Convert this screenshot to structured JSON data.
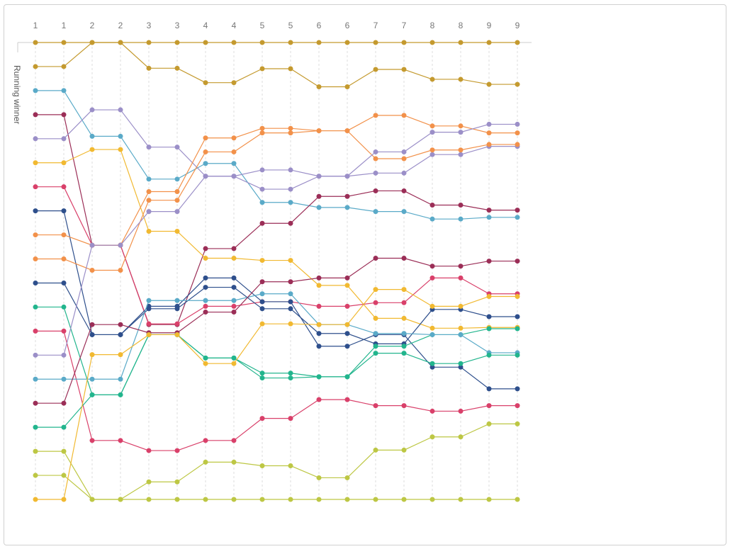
{
  "chart_data": {
    "type": "line",
    "title": "",
    "xlabel": "",
    "ylabel": "Running winner",
    "x": [
      "1",
      "1",
      "2",
      "2",
      "3",
      "3",
      "4",
      "4",
      "5",
      "5",
      "6",
      "6",
      "7",
      "7",
      "8",
      "8",
      "9",
      "9"
    ],
    "ylim": [
      0,
      19
    ],
    "y_inverted": true,
    "grid_x": true,
    "legend": "none",
    "series": [
      {
        "color": "#c49a2f",
        "values": [
          0,
          0,
          0,
          0,
          0,
          0,
          0,
          0,
          0,
          0,
          0,
          0,
          0,
          0,
          0,
          0,
          0,
          0
        ]
      },
      {
        "color": "#c49a2f",
        "values": [
          1,
          1,
          0,
          0,
          1.07,
          1.07,
          1.67,
          1.67,
          1.09,
          1.09,
          1.84,
          1.84,
          1.12,
          1.12,
          1.53,
          1.53,
          1.74,
          1.74
        ]
      },
      {
        "color": "#5aaac8",
        "values": [
          2,
          2,
          3.9,
          3.9,
          5.68,
          5.68,
          5.03,
          5.03,
          6.65,
          6.65,
          6.86,
          6.86,
          7.03,
          7.03,
          7.34,
          7.34,
          7.27,
          7.27
        ]
      },
      {
        "color": "#9b2e57",
        "values": [
          3,
          3,
          8.43,
          8.43,
          11.73,
          11.73,
          8.57,
          8.57,
          7.52,
          7.52,
          6.4,
          6.4,
          6.17,
          6.17,
          6.76,
          6.76,
          6.97,
          6.97
        ]
      },
      {
        "color": "#9b8fc8",
        "values": [
          4,
          4,
          2.8,
          2.8,
          4.35,
          4.35,
          5.56,
          5.56,
          5.3,
          5.3,
          5.56,
          5.56,
          5.43,
          5.43,
          4.66,
          4.66,
          4.32,
          4.32
        ]
      },
      {
        "color": "#f1b931",
        "values": [
          5,
          5,
          4.45,
          4.45,
          7.85,
          7.85,
          8.97,
          8.97,
          9.06,
          9.06,
          10.1,
          10.1,
          11.47,
          11.47,
          11.88,
          11.88,
          11.85,
          11.85
        ]
      },
      {
        "color": "#d9406a",
        "values": [
          6,
          6,
          8.43,
          8.43,
          11.7,
          11.7,
          10.97,
          10.97,
          10.78,
          10.78,
          10.97,
          10.97,
          10.82,
          10.82,
          9.79,
          9.79,
          10.45,
          10.45
        ]
      },
      {
        "color": "#2e4f8c",
        "values": [
          7,
          7,
          12.15,
          12.15,
          10.97,
          10.97,
          9.79,
          9.79,
          10.78,
          10.78,
          12.63,
          12.63,
          12.15,
          12.15,
          13.5,
          13.5,
          14.4,
          14.4
        ]
      },
      {
        "color": "#f2914a",
        "values": [
          8,
          8,
          8.43,
          8.43,
          6.2,
          6.2,
          3.97,
          3.97,
          3.57,
          3.57,
          3.67,
          3.67,
          4.83,
          4.83,
          4.47,
          4.47,
          4.24,
          4.24
        ]
      },
      {
        "color": "#f2914a",
        "values": [
          9,
          9,
          9.47,
          9.47,
          6.56,
          6.56,
          4.55,
          4.55,
          3.76,
          3.76,
          3.67,
          3.67,
          3.03,
          3.03,
          3.47,
          3.47,
          3.76,
          3.76
        ]
      },
      {
        "color": "#2e4f8c",
        "values": [
          10,
          10,
          12.15,
          12.15,
          11.07,
          11.07,
          10.18,
          10.18,
          11.07,
          11.07,
          12.1,
          12.1,
          12.53,
          12.53,
          11.1,
          11.1,
          11.4,
          11.4
        ]
      },
      {
        "color": "#22b58d",
        "values": [
          11,
          11,
          14.65,
          14.65,
          12.15,
          12.15,
          13.12,
          13.12,
          13.95,
          13.95,
          13.9,
          13.9,
          12.63,
          12.63,
          12.15,
          12.15,
          11.9,
          11.9
        ]
      },
      {
        "color": "#d9406a",
        "values": [
          12,
          12,
          16.55,
          16.55,
          16.97,
          16.97,
          16.55,
          16.55,
          15.63,
          15.63,
          14.85,
          14.85,
          15.1,
          15.1,
          15.33,
          15.33,
          15.1,
          15.1
        ]
      },
      {
        "color": "#9b8fc8",
        "values": [
          13,
          13,
          8.43,
          8.43,
          7.03,
          7.03,
          5.56,
          5.56,
          6.1,
          6.1,
          5.56,
          5.56,
          4.55,
          4.55,
          3.73,
          3.73,
          3.4,
          3.4
        ]
      },
      {
        "color": "#5aaac8",
        "values": [
          14,
          14,
          14.0,
          14.0,
          10.73,
          10.73,
          10.73,
          10.73,
          10.45,
          10.45,
          11.73,
          11.73,
          12.1,
          12.1,
          12.15,
          12.15,
          12.9,
          12.9
        ]
      },
      {
        "color": "#9b2e57",
        "values": [
          15,
          15,
          11.73,
          11.73,
          12.07,
          12.07,
          11.21,
          11.21,
          9.95,
          9.95,
          9.79,
          9.79,
          8.97,
          8.97,
          9.3,
          9.3,
          9.09,
          9.09
        ]
      },
      {
        "color": "#22b58d",
        "values": [
          16,
          16,
          14.65,
          14.65,
          12.15,
          12.15,
          13.12,
          13.12,
          13.75,
          13.75,
          13.9,
          13.9,
          12.92,
          12.92,
          13.35,
          13.35,
          13.0,
          13.0
        ]
      },
      {
        "color": "#bdc744",
        "values": [
          17,
          17,
          19,
          19,
          19,
          19,
          19,
          19,
          19,
          19,
          19,
          19,
          19,
          19,
          19,
          19,
          19,
          19
        ]
      },
      {
        "color": "#bdc744",
        "values": [
          18,
          18,
          19,
          19,
          18.27,
          18.27,
          17.45,
          17.45,
          17.6,
          17.6,
          18.1,
          18.1,
          16.95,
          16.95,
          16.4,
          16.4,
          15.86,
          15.86
        ]
      },
      {
        "color": "#f1b931",
        "values": [
          19,
          19,
          12.98,
          12.98,
          12.15,
          12.15,
          13.35,
          13.35,
          11.7,
          11.7,
          11.73,
          11.73,
          10.27,
          10.27,
          10.97,
          10.97,
          10.56,
          10.56
        ]
      }
    ]
  }
}
